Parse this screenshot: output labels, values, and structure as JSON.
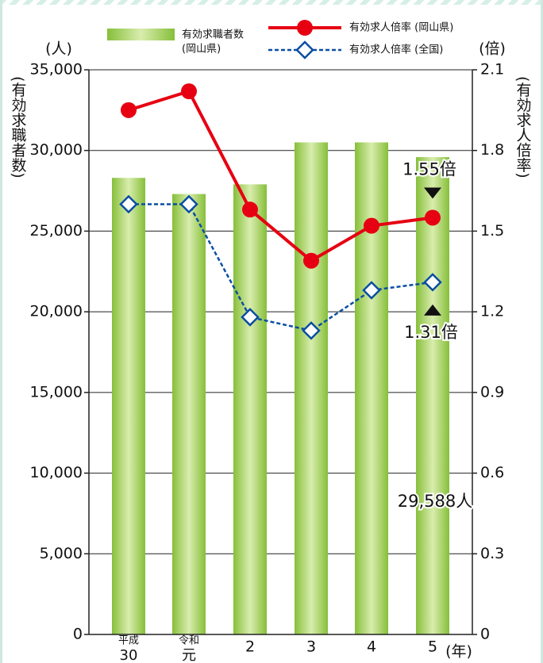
{
  "chart_data": {
    "type": "bar-line",
    "y_unit": "(人)",
    "y2_unit": "(倍)",
    "y_label": "(有効求職者数)",
    "y2_label": "(有効求人倍率)",
    "x_unit": "(年)",
    "categories": [
      [
        "平成",
        "30"
      ],
      [
        "令和",
        "元"
      ],
      "2",
      "3",
      "4",
      "5"
    ],
    "ylim": [
      0,
      35000
    ],
    "yticks": [
      0,
      {
        "value": 5000,
        "label": "5,000"
      },
      {
        "value": 10000,
        "label": "10,000"
      },
      {
        "value": 15000,
        "label": "15,000"
      },
      {
        "value": 20000,
        "label": "20,000"
      },
      {
        "value": 25000,
        "label": "25,000"
      },
      {
        "value": 30000,
        "label": "30,000"
      },
      {
        "value": 35000,
        "label": "35,000"
      }
    ],
    "y2lim": [
      0,
      2.1
    ],
    "y2ticks": [
      0,
      0.3,
      0.6,
      0.9,
      1.2,
      1.5,
      1.8,
      2.1
    ],
    "grid": true,
    "series": [
      {
        "name": [
          "有効求職者数",
          "(岡山県)"
        ],
        "type": "bar",
        "color": "#8dc63f",
        "values": [
          28300,
          27300,
          27900,
          30500,
          30500,
          29588
        ],
        "value_labels": [
          null,
          null,
          null,
          null,
          null,
          "29,588人"
        ]
      },
      {
        "name": "有効求人倍率 (岡山県)",
        "type": "line",
        "axis": "y2",
        "color": "#e60012",
        "values": [
          1.95,
          2.02,
          1.58,
          1.39,
          1.52,
          1.55
        ],
        "value_labels": [
          null,
          null,
          null,
          null,
          null,
          "1.55倍"
        ]
      },
      {
        "name": "有効求人倍率 (全国)",
        "type": "line",
        "axis": "y2",
        "color": "#0a4ea2",
        "dashed": true,
        "values": [
          1.6,
          1.6,
          1.18,
          1.13,
          1.28,
          1.31
        ],
        "value_labels": [
          null,
          null,
          null,
          null,
          null,
          "1.31倍"
        ]
      }
    ]
  }
}
